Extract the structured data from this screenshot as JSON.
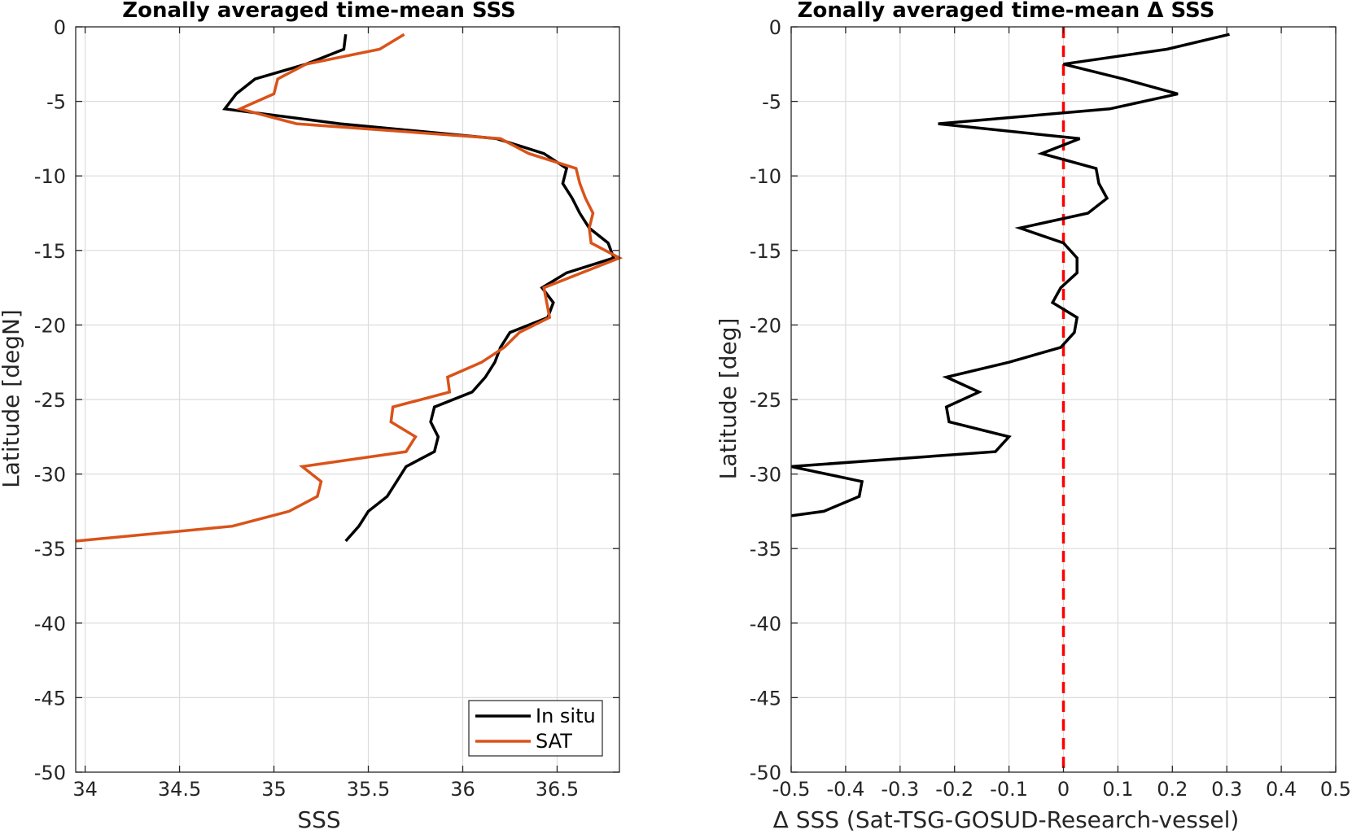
{
  "chart_data": [
    {
      "type": "line",
      "title": "Zonally averaged time-mean SSS",
      "xlabel": "SSS",
      "ylabel": "Latitude [degN]",
      "xlim": [
        33.95,
        36.83
      ],
      "ylim": [
        -50,
        0
      ],
      "xticks": [
        34,
        34.5,
        35,
        35.5,
        36,
        36.5
      ],
      "xtick_labels": [
        "34",
        "34.5",
        "35",
        "35.5",
        "36",
        "36.5"
      ],
      "yticks": [
        0,
        -5,
        -10,
        -15,
        -20,
        -25,
        -30,
        -35,
        -40,
        -45,
        -50
      ],
      "ytick_labels": [
        "0",
        "-5",
        "-10",
        "-15",
        "-20",
        "-25",
        "-30",
        "-35",
        "-40",
        "-45",
        "-50"
      ],
      "grid": true,
      "legend": "bottom-right",
      "series": [
        {
          "name": "In situ",
          "color": "#000000",
          "points": [
            [
              35.38,
              -0.5
            ],
            [
              35.37,
              -1.5
            ],
            [
              35.17,
              -2.5
            ],
            [
              34.9,
              -3.5
            ],
            [
              34.8,
              -4.5
            ],
            [
              34.74,
              -5.5
            ],
            [
              35.35,
              -6.5
            ],
            [
              36.18,
              -7.5
            ],
            [
              36.43,
              -8.5
            ],
            [
              36.55,
              -9.5
            ],
            [
              36.53,
              -10.5
            ],
            [
              36.58,
              -11.5
            ],
            [
              36.62,
              -12.5
            ],
            [
              36.67,
              -13.5
            ],
            [
              36.77,
              -14.5
            ],
            [
              36.8,
              -15.5
            ],
            [
              36.55,
              -16.5
            ],
            [
              36.42,
              -17.5
            ],
            [
              36.48,
              -18.5
            ],
            [
              36.45,
              -19.5
            ],
            [
              36.25,
              -20.5
            ],
            [
              36.2,
              -21.5
            ],
            [
              36.17,
              -22.5
            ],
            [
              36.12,
              -23.5
            ],
            [
              36.05,
              -24.5
            ],
            [
              35.85,
              -25.5
            ],
            [
              35.83,
              -26.5
            ],
            [
              35.87,
              -27.5
            ],
            [
              35.85,
              -28.5
            ],
            [
              35.7,
              -29.5
            ],
            [
              35.65,
              -30.5
            ],
            [
              35.6,
              -31.5
            ],
            [
              35.5,
              -32.5
            ],
            [
              35.45,
              -33.5
            ],
            [
              35.38,
              -34.5
            ]
          ]
        },
        {
          "name": "SAT",
          "color": "#d95319",
          "points": [
            [
              35.69,
              -0.5
            ],
            [
              35.56,
              -1.5
            ],
            [
              35.17,
              -2.5
            ],
            [
              35.02,
              -3.5
            ],
            [
              35.0,
              -4.5
            ],
            [
              34.82,
              -5.5
            ],
            [
              35.12,
              -6.5
            ],
            [
              36.2,
              -7.5
            ],
            [
              36.35,
              -8.5
            ],
            [
              36.6,
              -9.5
            ],
            [
              36.62,
              -10.5
            ],
            [
              36.65,
              -11.5
            ],
            [
              36.69,
              -12.5
            ],
            [
              36.67,
              -13.5
            ],
            [
              36.68,
              -14.5
            ],
            [
              36.83,
              -15.5
            ],
            [
              36.43,
              -17.5
            ],
            [
              36.46,
              -19.5
            ],
            [
              36.3,
              -20.5
            ],
            [
              36.22,
              -21.5
            ],
            [
              36.1,
              -22.5
            ],
            [
              35.92,
              -23.5
            ],
            [
              35.93,
              -24.5
            ],
            [
              35.63,
              -25.5
            ],
            [
              35.62,
              -26.5
            ],
            [
              35.75,
              -27.5
            ],
            [
              35.7,
              -28.5
            ],
            [
              35.15,
              -29.5
            ],
            [
              35.25,
              -30.5
            ],
            [
              35.23,
              -31.5
            ],
            [
              35.08,
              -32.5
            ],
            [
              34.78,
              -33.5
            ],
            [
              33.95,
              -34.5
            ]
          ]
        }
      ]
    },
    {
      "type": "line",
      "title": "Zonally averaged time-mean Δ SSS",
      "xlabel": "Δ SSS (Sat-TSG-GOSUD-Research-vessel)",
      "ylabel": "Latitude [deg]",
      "xlim": [
        -0.5,
        0.5
      ],
      "ylim": [
        -50,
        0
      ],
      "xticks": [
        -0.5,
        -0.4,
        -0.3,
        -0.2,
        -0.1,
        0,
        0.1,
        0.2,
        0.3,
        0.4,
        0.5
      ],
      "xtick_labels": [
        "-0.5",
        "-0.4",
        "-0.3",
        "-0.2",
        "-0.1",
        "0",
        "0.1",
        "0.2",
        "0.3",
        "0.4",
        "0.5"
      ],
      "yticks": [
        0,
        -5,
        -10,
        -15,
        -20,
        -25,
        -30,
        -35,
        -40,
        -45,
        -50
      ],
      "ytick_labels": [
        "0",
        "-5",
        "-10",
        "-15",
        "-20",
        "-25",
        "-30",
        "-35",
        "-40",
        "-45",
        "-50"
      ],
      "grid": true,
      "reference_line": {
        "x": 0,
        "color": "#ff0000",
        "style": "dashed"
      },
      "series": [
        {
          "color": "#000000",
          "points": [
            [
              0.305,
              -0.5
            ],
            [
              0.19,
              -1.5
            ],
            [
              0.0,
              -2.5
            ],
            [
              0.11,
              -3.5
            ],
            [
              0.21,
              -4.5
            ],
            [
              0.085,
              -5.5
            ],
            [
              -0.23,
              -6.5
            ],
            [
              0.03,
              -7.5
            ],
            [
              -0.04,
              -8.5
            ],
            [
              0.06,
              -9.5
            ],
            [
              0.065,
              -10.5
            ],
            [
              0.08,
              -11.5
            ],
            [
              0.045,
              -12.5
            ],
            [
              -0.08,
              -13.5
            ],
            [
              0.0,
              -14.5
            ],
            [
              0.025,
              -15.5
            ],
            [
              0.025,
              -16.5
            ],
            [
              -0.005,
              -17.5
            ],
            [
              -0.02,
              -18.5
            ],
            [
              0.025,
              -19.5
            ],
            [
              0.02,
              -20.5
            ],
            [
              -0.005,
              -21.5
            ],
            [
              -0.1,
              -22.5
            ],
            [
              -0.215,
              -23.5
            ],
            [
              -0.155,
              -24.5
            ],
            [
              -0.215,
              -25.5
            ],
            [
              -0.21,
              -26.5
            ],
            [
              -0.1,
              -27.5
            ],
            [
              -0.125,
              -28.5
            ],
            [
              -0.5,
              -29.5
            ],
            [
              -0.37,
              -30.5
            ],
            [
              -0.375,
              -31.5
            ],
            [
              -0.44,
              -32.5
            ],
            [
              -0.5,
              -32.8
            ]
          ]
        }
      ]
    }
  ],
  "legend": {
    "items": [
      {
        "label": "In situ",
        "color": "#000000"
      },
      {
        "label": "SAT",
        "color": "#d95319"
      }
    ]
  }
}
